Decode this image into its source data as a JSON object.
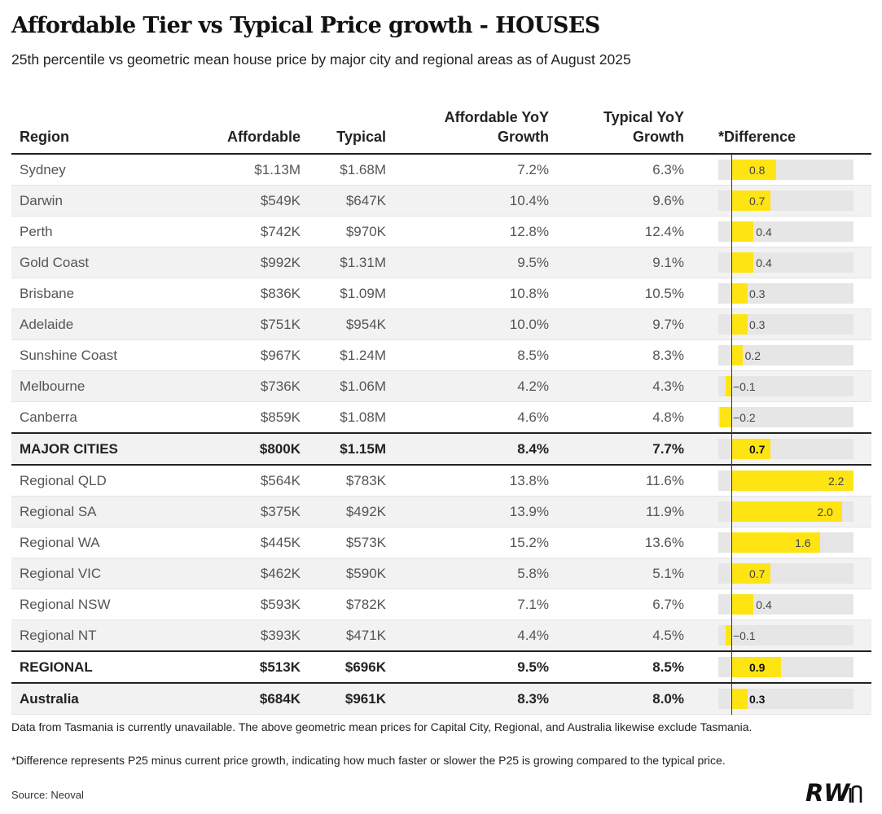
{
  "title": "Affordable Tier vs Typical Price growth - HOUSES",
  "subtitle": "25th percentile vs geometric mean house price by major city and regional areas as of August 2025",
  "headers": {
    "region": "Region",
    "affordable": "Affordable",
    "typical": "Typical",
    "affordable_growth_l1": "Affordable YoY",
    "affordable_growth_l2": "Growth",
    "typical_growth_l1": "Typical YoY",
    "typical_growth_l2": "Growth",
    "difference": "*Difference"
  },
  "footnotes": {
    "note1": "Data from Tasmania is currently unavailable. The above geometric mean prices for Capital City, Regional, and Australia likewise exclude Tasmania.",
    "note2": "*Difference represents P25 minus current price growth, indicating how much faster or slower the P25 is growing compared to the typical price.",
    "source": "Source: Neoval"
  },
  "logo_text": "RWn",
  "colors": {
    "bar": "#ffe414",
    "bar_bg": "#e6e6e6",
    "band": "#f2f2f2"
  },
  "chart_data": {
    "type": "table",
    "diff_range": [
      -0.2,
      2.2
    ],
    "rows": [
      {
        "region": "Sydney",
        "affordable": "$1.13M",
        "typical": "$1.68M",
        "affordable_growth": "7.2%",
        "typical_growth": "6.3%",
        "difference": 0.8,
        "difference_label": "0.8"
      },
      {
        "region": "Darwin",
        "affordable": "$549K",
        "typical": "$647K",
        "affordable_growth": "10.4%",
        "typical_growth": "9.6%",
        "difference": 0.7,
        "difference_label": "0.7"
      },
      {
        "region": "Perth",
        "affordable": "$742K",
        "typical": "$970K",
        "affordable_growth": "12.8%",
        "typical_growth": "12.4%",
        "difference": 0.4,
        "difference_label": "0.4"
      },
      {
        "region": "Gold Coast",
        "affordable": "$992K",
        "typical": "$1.31M",
        "affordable_growth": "9.5%",
        "typical_growth": "9.1%",
        "difference": 0.4,
        "difference_label": "0.4"
      },
      {
        "region": "Brisbane",
        "affordable": "$836K",
        "typical": "$1.09M",
        "affordable_growth": "10.8%",
        "typical_growth": "10.5%",
        "difference": 0.3,
        "difference_label": "0.3"
      },
      {
        "region": "Adelaide",
        "affordable": "$751K",
        "typical": "$954K",
        "affordable_growth": "10.0%",
        "typical_growth": "9.7%",
        "difference": 0.3,
        "difference_label": "0.3"
      },
      {
        "region": "Sunshine Coast",
        "affordable": "$967K",
        "typical": "$1.24M",
        "affordable_growth": "8.5%",
        "typical_growth": "8.3%",
        "difference": 0.2,
        "difference_label": "0.2"
      },
      {
        "region": "Melbourne",
        "affordable": "$736K",
        "typical": "$1.06M",
        "affordable_growth": "4.2%",
        "typical_growth": "4.3%",
        "difference": -0.1,
        "difference_label": "−0.1"
      },
      {
        "region": "Canberra",
        "affordable": "$859K",
        "typical": "$1.08M",
        "affordable_growth": "4.6%",
        "typical_growth": "4.8%",
        "difference": -0.2,
        "difference_label": "−0.2"
      },
      {
        "region": "MAJOR CITIES",
        "affordable": "$800K",
        "typical": "$1.15M",
        "affordable_growth": "8.4%",
        "typical_growth": "7.7%",
        "difference": 0.7,
        "difference_label": "0.7",
        "summary": true
      },
      {
        "region": "Regional QLD",
        "affordable": "$564K",
        "typical": "$783K",
        "affordable_growth": "13.8%",
        "typical_growth": "11.6%",
        "difference": 2.2,
        "difference_label": "2.2"
      },
      {
        "region": "Regional SA",
        "affordable": "$375K",
        "typical": "$492K",
        "affordable_growth": "13.9%",
        "typical_growth": "11.9%",
        "difference": 2.0,
        "difference_label": "2.0"
      },
      {
        "region": "Regional WA",
        "affordable": "$445K",
        "typical": "$573K",
        "affordable_growth": "15.2%",
        "typical_growth": "13.6%",
        "difference": 1.6,
        "difference_label": "1.6"
      },
      {
        "region": "Regional VIC",
        "affordable": "$462K",
        "typical": "$590K",
        "affordable_growth": "5.8%",
        "typical_growth": "5.1%",
        "difference": 0.7,
        "difference_label": "0.7"
      },
      {
        "region": "Regional NSW",
        "affordable": "$593K",
        "typical": "$782K",
        "affordable_growth": "7.1%",
        "typical_growth": "6.7%",
        "difference": 0.4,
        "difference_label": "0.4"
      },
      {
        "region": "Regional NT",
        "affordable": "$393K",
        "typical": "$471K",
        "affordable_growth": "4.4%",
        "typical_growth": "4.5%",
        "difference": -0.1,
        "difference_label": "−0.1"
      },
      {
        "region": "REGIONAL",
        "affordable": "$513K",
        "typical": "$696K",
        "affordable_growth": "9.5%",
        "typical_growth": "8.5%",
        "difference": 0.9,
        "difference_label": "0.9",
        "summary": true
      },
      {
        "region": "Australia",
        "affordable": "$684K",
        "typical": "$961K",
        "affordable_growth": "8.3%",
        "typical_growth": "8.0%",
        "difference": 0.3,
        "difference_label": "0.3",
        "summary": true
      }
    ]
  }
}
